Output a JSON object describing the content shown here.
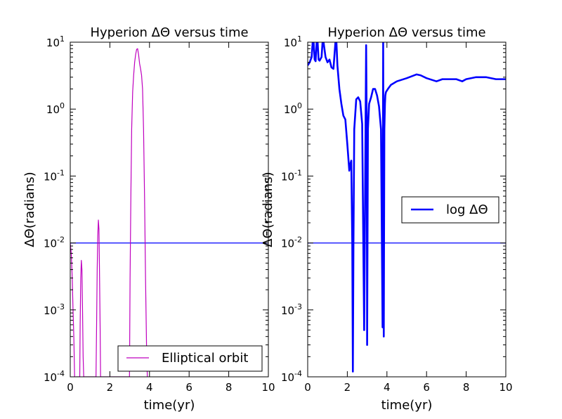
{
  "chart_data": [
    {
      "type": "line",
      "title": "Hyperion  ΔΘ versus time",
      "xlabel": "time(yr)",
      "ylabel": "ΔΘ(radians)",
      "yscale": "log",
      "xlim": [
        0,
        10
      ],
      "ylim_exp": [
        -4,
        1
      ],
      "xticks": [
        "0",
        "2",
        "4",
        "6",
        "8",
        "10"
      ],
      "ytick_base": "10",
      "yticks": [
        "-4",
        "-3",
        "-2",
        "-1",
        "0",
        "1"
      ],
      "legend": {
        "label": "Elliptical orbit",
        "loc": "lower-right"
      },
      "reference_line": {
        "y": 0.01,
        "color": "#0000ff"
      },
      "series": [
        {
          "name": "Elliptical orbit",
          "color": "#bf00bf",
          "x": [
            0,
            0.05,
            0.1,
            0.14,
            0.18,
            0.22,
            0.25,
            0.28,
            0.3,
            0.48,
            0.5,
            0.53,
            0.56,
            0.59,
            0.62,
            0.65,
            0.68,
            1.3,
            1.33,
            1.36,
            1.39,
            1.42,
            1.45,
            1.48,
            1.51,
            1.53,
            2.99,
            3.02,
            3.06,
            3.1,
            3.15,
            3.2,
            3.25,
            3.3,
            3.35,
            3.4,
            3.45,
            3.5,
            3.55,
            3.6,
            3.65,
            3.7,
            3.75,
            3.8,
            3.85,
            3.89
          ],
          "y": [
            0.01,
            0.007,
            0.003,
            0.001,
            0.0004,
            0.0001,
            0.0001,
            null,
            0.0001,
            0.0001,
            0.0006,
            0.003,
            0.0055,
            0.004,
            0.001,
            0.0002,
            0.0001,
            0.0001,
            0.0006,
            0.004,
            0.013,
            0.022,
            0.016,
            0.003,
            0.0005,
            0.0001,
            0.0001,
            0.003,
            0.05,
            0.5,
            1.8,
            3.2,
            5,
            6.5,
            7.8,
            8,
            6.5,
            4.8,
            4,
            3.2,
            2,
            0.5,
            0.05,
            0.003,
            0.0003,
            0.0001
          ]
        }
      ]
    },
    {
      "type": "line",
      "title": "Hyperion  ΔΘ versus time",
      "xlabel": "time(yr)",
      "ylabel": "ΔΘ(radians)",
      "yscale": "log",
      "xlim": [
        0,
        10
      ],
      "ylim_exp": [
        -4,
        1
      ],
      "xticks": [
        "0",
        "2",
        "4",
        "6",
        "8",
        "10"
      ],
      "ytick_base": "10",
      "yticks": [
        "-4",
        "-3",
        "-2",
        "-1",
        "0",
        "1"
      ],
      "legend": {
        "label": "log ΔΘ",
        "loc": "center-right"
      },
      "reference_line": {
        "y": 0.01,
        "color": "#0000ff"
      },
      "series": [
        {
          "name": "log ΔΘ",
          "color": "#0000ff",
          "x": [
            0,
            0.1,
            0.2,
            0.25,
            0.3,
            0.35,
            0.4,
            0.45,
            0.5,
            0.55,
            0.6,
            0.7,
            0.75,
            0.8,
            0.9,
            1,
            1.1,
            1.2,
            1.3,
            1.4,
            1.45,
            1.5,
            1.55,
            1.6,
            1.7,
            1.8,
            1.9,
            2,
            2.1,
            2.15,
            2.2,
            2.25,
            2.28,
            2.31,
            2.35,
            2.45,
            2.55,
            2.65,
            2.75,
            2.85,
            2.92,
            2.95,
            2.98,
            3.0,
            3.04,
            3.1,
            3.2,
            3.3,
            3.4,
            3.5,
            3.6,
            3.7,
            3.78,
            3.81,
            3.84,
            3.87,
            3.9,
            3.92,
            3.95,
            4.05,
            4.2,
            4.5,
            5,
            5.5,
            5.7,
            6.0,
            6.5,
            6.8,
            7,
            7.5,
            7.8,
            8,
            8.5,
            9,
            9.5,
            10
          ],
          "y": [
            4.5,
            5,
            6,
            10,
            10,
            5.5,
            5.2,
            10,
            10,
            5.5,
            5.3,
            6,
            10,
            10,
            6,
            5,
            5.5,
            4.2,
            4,
            10,
            10,
            4.5,
            3,
            2,
            1.2,
            0.8,
            0.7,
            0.3,
            0.12,
            0.15,
            0.17,
            0.01,
            0.00012,
            0.01,
            0.5,
            1.4,
            1.5,
            1.3,
            0.6,
            0.0005,
            0.5,
            9,
            0.5,
            0.0003,
            0.5,
            1.2,
            1.5,
            2,
            2,
            1.6,
            1.1,
            0.5,
            0.00055,
            10,
            0.0004,
            0.5,
            1.2,
            1.6,
            1.8,
            2,
            2.3,
            2.6,
            2.9,
            3.3,
            3.2,
            2.9,
            2.6,
            2.8,
            2.8,
            2.8,
            2.6,
            2.8,
            3,
            3,
            2.8,
            2.8
          ]
        }
      ]
    }
  ]
}
